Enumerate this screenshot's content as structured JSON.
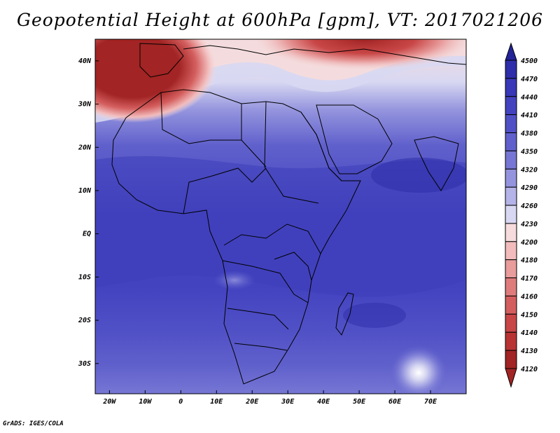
{
  "title": "Geopotential Height at 600hPa [gpm], VT: 2017021206",
  "credit": "GrADS: IGES/COLA",
  "map": {
    "lon_range": [
      -24,
      80
    ],
    "lat_range": [
      -37,
      45
    ],
    "lat_labels": [
      "40N",
      "30N",
      "20N",
      "10N",
      "EQ",
      "10S",
      "20S",
      "30S"
    ],
    "lat_values": [
      40,
      30,
      20,
      10,
      0,
      -10,
      -20,
      -30
    ],
    "lon_labels": [
      "20W",
      "10W",
      "0",
      "10E",
      "20E",
      "30E",
      "40E",
      "50E",
      "60E",
      "70E"
    ],
    "lon_values": [
      -20,
      -10,
      0,
      10,
      20,
      30,
      40,
      50,
      60,
      70
    ]
  },
  "colorbar": {
    "levels": [
      "4500",
      "4470",
      "4440",
      "4410",
      "4380",
      "4350",
      "4320",
      "4290",
      "4260",
      "4230",
      "4200",
      "4180",
      "4170",
      "4160",
      "4150",
      "4140",
      "4130",
      "4120"
    ],
    "colors": [
      "#23239a",
      "#2e2eaa",
      "#3838b8",
      "#4343c0",
      "#5050c6",
      "#6060cc",
      "#7676d4",
      "#9494de",
      "#b4b4e8",
      "#d8d8f2",
      "#f6dcdc",
      "#f2bcbc",
      "#e89c9c",
      "#de7c7c",
      "#d45e5e",
      "#c84646",
      "#b83434",
      "#a22424"
    ]
  }
}
